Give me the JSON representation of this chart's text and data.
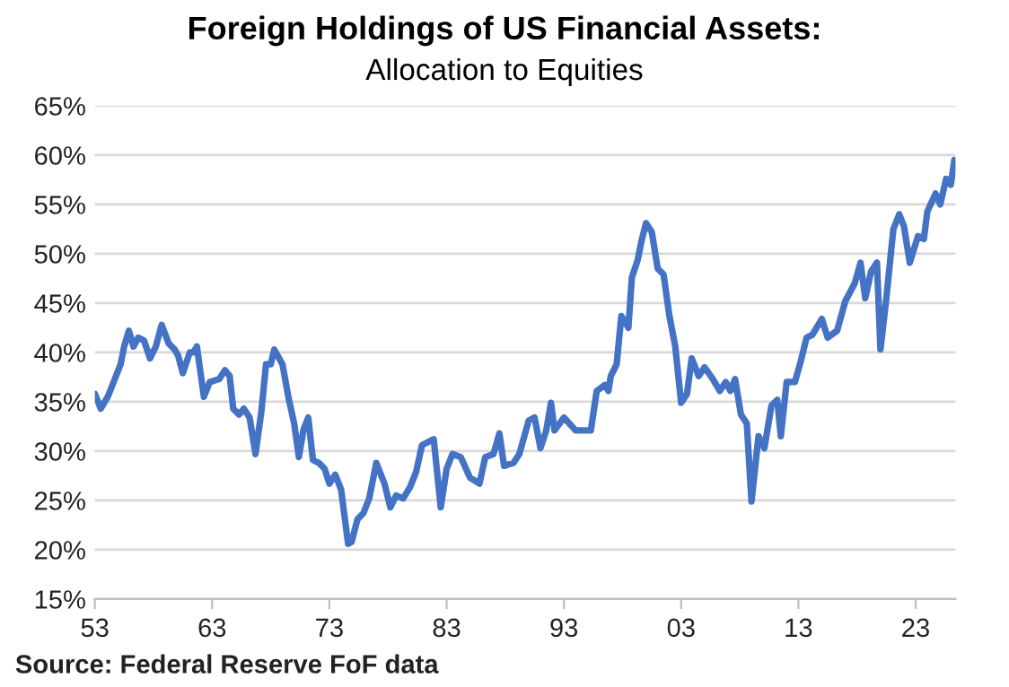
{
  "chart_data": {
    "type": "line",
    "title": "Foreign Holdings of US Financial Assets:",
    "subtitle": "Allocation to Equities",
    "x": [
      1953.0,
      1953.5,
      1954.1,
      1954.6,
      1955.2,
      1955.5,
      1955.9,
      1956.3,
      1956.7,
      1957.2,
      1957.7,
      1958.2,
      1958.7,
      1959.3,
      1959.8,
      1960.1,
      1960.5,
      1961.1,
      1961.4,
      1961.7,
      1962.3,
      1962.8,
      1963.6,
      1964.1,
      1964.5,
      1964.8,
      1965.3,
      1965.7,
      1966.2,
      1966.7,
      1967.2,
      1967.6,
      1968.0,
      1968.3,
      1969.0,
      1969.5,
      1970.0,
      1970.4,
      1970.8,
      1971.2,
      1971.6,
      1972.1,
      1972.6,
      1973.0,
      1973.5,
      1974.0,
      1974.6,
      1974.9,
      1975.4,
      1975.9,
      1976.4,
      1977.0,
      1977.7,
      1978.2,
      1978.7,
      1979.3,
      1979.9,
      1980.4,
      1980.9,
      1981.4,
      1981.9,
      1982.5,
      1983.0,
      1983.5,
      1984.2,
      1985.0,
      1985.8,
      1986.3,
      1987.0,
      1987.5,
      1987.9,
      1988.7,
      1989.2,
      1990.0,
      1990.5,
      1991.0,
      1991.5,
      1991.9,
      1992.2,
      1993.0,
      1994.0,
      1995.3,
      1995.8,
      1996.5,
      1996.8,
      1997.0,
      1997.5,
      1997.9,
      1998.5,
      1998.8,
      1999.3,
      1999.6,
      2000.0,
      2000.5,
      2001.0,
      2001.5,
      2002.0,
      2002.5,
      2003.0,
      2003.5,
      2003.9,
      2004.5,
      2005.0,
      2005.7,
      2006.3,
      2006.8,
      2007.2,
      2007.6,
      2008.1,
      2008.6,
      2009.0,
      2009.6,
      2010.1,
      2010.7,
      2011.2,
      2011.5,
      2012.0,
      2012.7,
      2013.2,
      2013.7,
      2014.2,
      2015.0,
      2015.5,
      2016.3,
      2017.0,
      2017.8,
      2018.3,
      2018.7,
      2019.2,
      2019.7,
      2020.0,
      2020.5,
      2021.1,
      2021.6,
      2022.0,
      2022.5,
      2023.2,
      2023.7,
      2024.0,
      2024.7,
      2025.1,
      2025.6,
      2026.0,
      2026.3
    ],
    "series": [
      {
        "color": "#4472c4",
        "values": [
          35.8,
          34.3,
          35.5,
          37.0,
          38.8,
          40.6,
          42.2,
          40.6,
          41.5,
          41.2,
          39.4,
          40.6,
          42.8,
          40.9,
          40.3,
          39.7,
          37.9,
          40.0,
          40.0,
          40.6,
          35.5,
          37.0,
          37.3,
          38.2,
          37.6,
          34.3,
          33.7,
          34.3,
          33.4,
          29.7,
          34.0,
          38.8,
          38.8,
          40.3,
          38.8,
          35.5,
          32.8,
          29.4,
          32.2,
          33.4,
          29.1,
          28.8,
          28.2,
          26.7,
          27.6,
          26.1,
          20.6,
          20.8,
          23.1,
          23.7,
          25.2,
          28.8,
          26.7,
          24.3,
          25.5,
          25.2,
          26.4,
          27.9,
          30.6,
          30.9,
          31.2,
          24.3,
          28.2,
          29.7,
          29.4,
          27.3,
          26.7,
          29.4,
          29.7,
          31.8,
          28.5,
          28.8,
          29.7,
          33.1,
          33.4,
          30.3,
          32.1,
          34.9,
          32.1,
          33.4,
          32.1,
          32.1,
          36.1,
          36.7,
          36.1,
          37.6,
          38.8,
          43.7,
          42.5,
          47.6,
          49.4,
          51.2,
          53.1,
          52.2,
          48.5,
          47.9,
          43.7,
          40.6,
          34.9,
          35.8,
          39.4,
          37.6,
          38.5,
          37.3,
          36.1,
          37.0,
          36.1,
          37.3,
          33.7,
          32.8,
          24.9,
          31.5,
          30.3,
          34.6,
          35.2,
          31.5,
          37.0,
          37.0,
          39.1,
          41.5,
          41.8,
          43.4,
          41.5,
          42.2,
          45.2,
          47.0,
          49.1,
          45.5,
          48.2,
          49.1,
          40.3,
          45.5,
          52.5,
          54.0,
          52.8,
          49.1,
          51.8,
          51.5,
          54.3,
          56.1,
          55.0,
          57.6,
          57.0,
          59.5
        ]
      }
    ],
    "xlim": [
      1953,
      2026.4
    ],
    "xticks": [
      {
        "value": 1953,
        "label": "53"
      },
      {
        "value": 1963,
        "label": "63"
      },
      {
        "value": 1973,
        "label": "73"
      },
      {
        "value": 1983,
        "label": "83"
      },
      {
        "value": 1993,
        "label": "93"
      },
      {
        "value": 2003,
        "label": "03"
      },
      {
        "value": 2013,
        "label": "13"
      },
      {
        "value": 2023,
        "label": "23"
      }
    ],
    "ylim": [
      15,
      65
    ],
    "yticks": [
      {
        "value": 15,
        "label": "15%"
      },
      {
        "value": 20,
        "label": "20%"
      },
      {
        "value": 25,
        "label": "25%"
      },
      {
        "value": 30,
        "label": "30%"
      },
      {
        "value": 35,
        "label": "35%"
      },
      {
        "value": 40,
        "label": "40%"
      },
      {
        "value": 45,
        "label": "45%"
      },
      {
        "value": 50,
        "label": "50%"
      },
      {
        "value": 55,
        "label": "55%"
      },
      {
        "value": 60,
        "label": "60%"
      },
      {
        "value": 65,
        "label": "65%"
      }
    ],
    "grid": "y",
    "annotations": [
      "Source: Federal Reserve FoF data"
    ]
  }
}
